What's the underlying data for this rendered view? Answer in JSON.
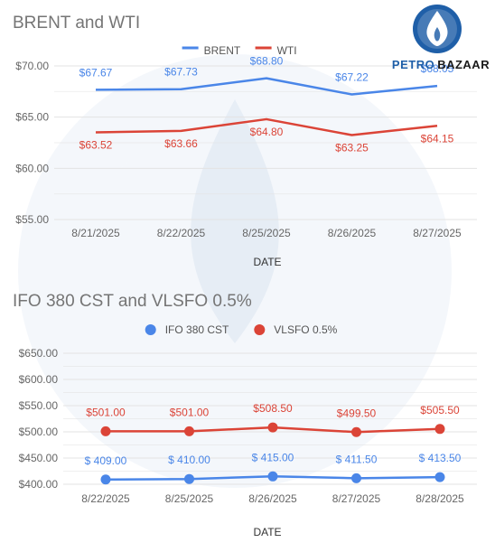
{
  "brand": {
    "word1": "PETRO",
    "word2": "BAZAAR",
    "colors": {
      "word1": "#1f5fa8",
      "word2": "#1a1a1a",
      "ring": "#1f5fa8",
      "flame": "#ffffff"
    }
  },
  "chart_data": [
    {
      "type": "line",
      "title": "BRENT and WTI",
      "xlabel": "DATE",
      "ylabel": "",
      "ylim": [
        55,
        70
      ],
      "yticks": [
        "$55.00",
        "$60.00",
        "$65.00",
        "$70.00"
      ],
      "ytick_values": [
        55,
        60,
        65,
        70
      ],
      "categories": [
        "8/21/2025",
        "8/22/2025",
        "8/25/2025",
        "8/26/2025",
        "8/27/2025"
      ],
      "legend": "top-center",
      "grid": true,
      "series": [
        {
          "name": "BRENT",
          "color": "#4a86e8",
          "marker": "line",
          "values": [
            67.67,
            67.73,
            68.8,
            67.22,
            68.05
          ],
          "labels": [
            "$67.67",
            "$67.73",
            "$68.80",
            "$67.22",
            "$68.05"
          ]
        },
        {
          "name": "WTI",
          "color": "#db4437",
          "marker": "line",
          "values": [
            63.52,
            63.66,
            64.8,
            63.25,
            64.15
          ],
          "labels": [
            "$63.52",
            "$63.66",
            "$64.80",
            "$63.25",
            "$64.15"
          ]
        }
      ]
    },
    {
      "type": "line",
      "title": "IFO 380 CST and VLSFO 0.5%",
      "xlabel": "DATE",
      "ylabel": "",
      "ylim": [
        400,
        650
      ],
      "yticks": [
        "$400.00",
        "$450.00",
        "$500.00",
        "$550.00",
        "$600.00",
        "$650.00"
      ],
      "ytick_values": [
        400,
        450,
        500,
        550,
        600,
        650
      ],
      "categories": [
        "8/22/2025",
        "8/25/2025",
        "8/26/2025",
        "8/27/2025",
        "8/28/2025"
      ],
      "legend": "top-center",
      "grid": true,
      "series": [
        {
          "name": "IFO 380 CST",
          "color": "#4a86e8",
          "marker": "point",
          "values": [
            409.0,
            410.0,
            415.0,
            411.5,
            413.5
          ],
          "labels": [
            "$ 409.00",
            "$ 410.00",
            "$ 415.00",
            "$ 411.50",
            "$ 413.50"
          ]
        },
        {
          "name": "VLSFO 0.5%",
          "color": "#db4437",
          "marker": "point",
          "values": [
            501.0,
            501.0,
            508.5,
            499.5,
            505.5
          ],
          "labels": [
            "$501.00",
            "$501.00",
            "$508.50",
            "$499.50",
            "$505.50"
          ]
        }
      ]
    }
  ]
}
